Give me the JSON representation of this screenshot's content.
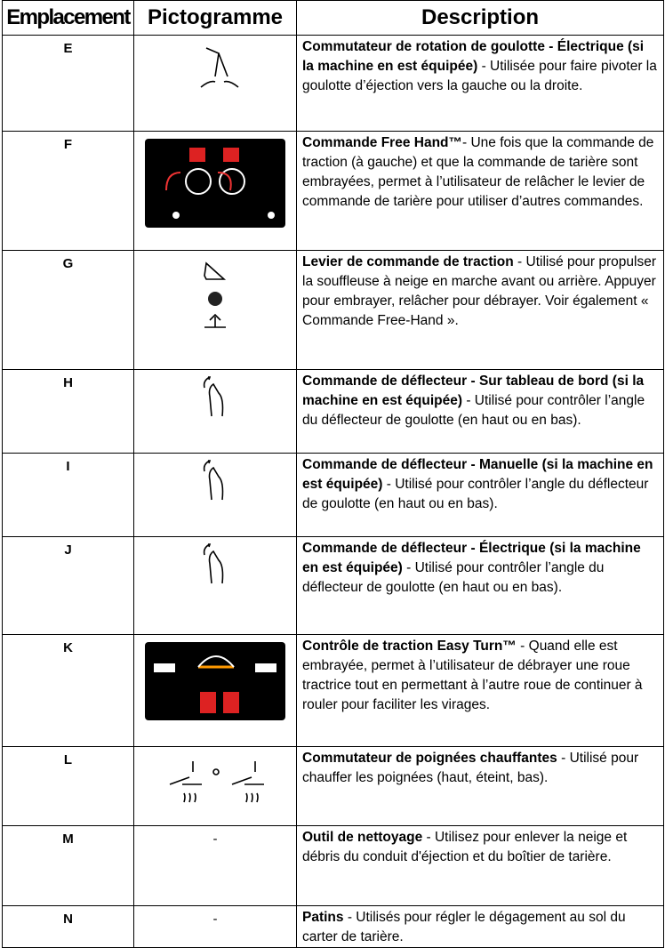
{
  "table": {
    "headers": [
      "Emplacement",
      "Pictogramme",
      "Description"
    ],
    "rows": [
      {
        "location": "E",
        "title": "Commutateur de rotation de goulotte - Électrique (si la machine en est équipée)",
        "text": " - Utilisée pour faire pivoter la goulotte d’éjection vers la gauche ou la droite."
      },
      {
        "location": "F",
        "title": "Commande Free Hand™",
        "text": "- Une fois que la commande de traction (à gauche) et que la commande de tarière sont embrayées, permet à l’utilisateur de relâcher le levier de commande de tarière pour utiliser d’autres commandes."
      },
      {
        "location": "G",
        "title": "Levier de commande de traction",
        "text": " - Utilisé pour propulser la souffleuse à neige en marche avant ou arrière. Appuyer pour embrayer, relâcher pour débrayer. Voir également « Commande Free-Hand »."
      },
      {
        "location": "H",
        "title": "Commande de déflecteur - Sur tableau de bord (si la machine en est équipée)",
        "text": " - Utilisé pour contrôler l’angle du déflecteur de goulotte (en haut ou en bas)."
      },
      {
        "location": "I",
        "title": "Commande de déflecteur - Manuelle (si la machine en est équipée)",
        "text": " - Utilisé pour contrôler l’angle du déflecteur de goulotte (en haut ou en bas)."
      },
      {
        "location": "J",
        "title": "Commande de déflecteur - Électrique (si la machine en est équipée)",
        "text": " - Utilisé pour contrôler l’angle du déflecteur de goulotte (en haut ou en bas)."
      },
      {
        "location": "K",
        "title": "Contrôle de traction Easy Turn™",
        "text": " - Quand elle est embrayée, permet à l’utilisateur de débrayer une roue tractrice tout en permettant à l’autre roue de continuer à rouler pour faciliter les virages."
      },
      {
        "location": "L",
        "title": "Commutateur de poignées chauffantes",
        "text": " - Utilisé pour chauffer les poignées (haut, éteint, bas)."
      },
      {
        "location": "M",
        "pictogram": "-",
        "title": "Outil de nettoyage",
        "text": " - Utilisez pour enlever la neige et débris du conduit d'éjection et du boîtier de tarière."
      },
      {
        "location": "N",
        "pictogram": "-",
        "title": "Patins",
        "text": " - Utilisés pour régler le dégagement au sol du carter de tarière."
      }
    ]
  }
}
